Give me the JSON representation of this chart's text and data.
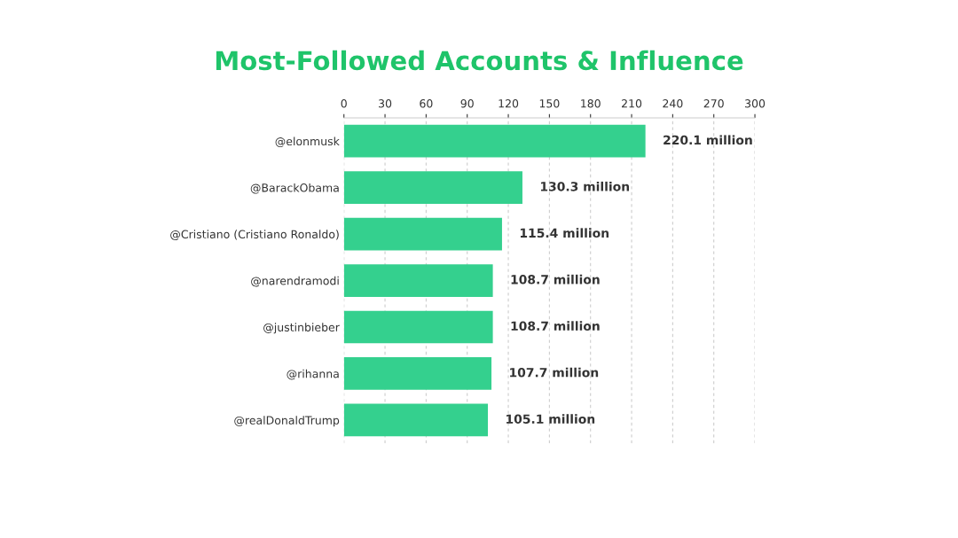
{
  "chart_data": {
    "type": "bar",
    "orientation": "horizontal",
    "title": "Most-Followed Accounts & Influence",
    "categories": [
      "@elonmusk",
      "@BarackObama",
      "@Cristiano (Cristiano Ronaldo)",
      "@narendramodi",
      "@justinbieber",
      "@rihanna",
      "@realDonaldTrump"
    ],
    "values": [
      220.1,
      130.3,
      115.4,
      108.7,
      108.7,
      107.7,
      105.1
    ],
    "value_labels": [
      "220.1 million",
      "130.3 million",
      "115.4 million",
      "108.7 million",
      "108.7 million",
      "107.7 million",
      "105.1 million"
    ],
    "color": "#34d08e",
    "xlim": [
      0,
      300
    ],
    "xticks": [
      0,
      30,
      60,
      90,
      120,
      150,
      180,
      210,
      240,
      270,
      300
    ],
    "grid": "x",
    "legend": false
  }
}
